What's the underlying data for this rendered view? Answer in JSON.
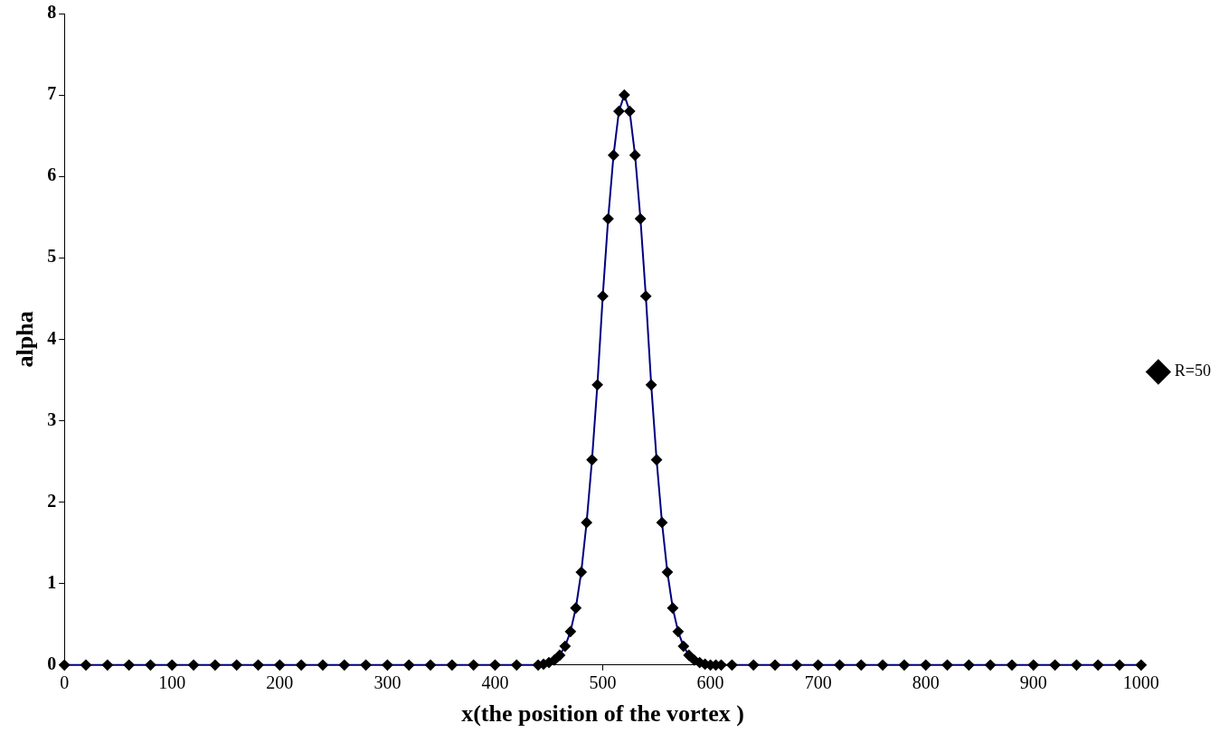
{
  "chart_data": {
    "type": "line",
    "xlabel": "x(the position of the vortex )",
    "ylabel": "alpha",
    "xlim": [
      0,
      1000
    ],
    "xticks": [
      0,
      100,
      200,
      300,
      400,
      500,
      600,
      700,
      800,
      900,
      1000
    ],
    "ylim": [
      0,
      8
    ],
    "yticks": [
      0,
      1,
      2,
      3,
      4,
      5,
      6,
      7,
      8
    ],
    "grid": false,
    "legend": "right",
    "marker": "diamond",
    "line_style": "solid",
    "series": [
      {
        "name": "R=50",
        "color": "#000080",
        "x": [
          0,
          20,
          40,
          60,
          80,
          100,
          120,
          140,
          160,
          180,
          200,
          220,
          240,
          260,
          280,
          300,
          320,
          340,
          360,
          380,
          400,
          420,
          440,
          445,
          450,
          455,
          460,
          465,
          470,
          475,
          480,
          485,
          490,
          495,
          500,
          505,
          510,
          515,
          520,
          525,
          530,
          535,
          540,
          545,
          550,
          555,
          560,
          565,
          570,
          575,
          580,
          585,
          590,
          595,
          600,
          605,
          610,
          620,
          640,
          660,
          680,
          700,
          720,
          740,
          760,
          780,
          800,
          820,
          840,
          860,
          880,
          900,
          920,
          940,
          960,
          980,
          1000
        ],
        "values": [
          0,
          0,
          0,
          0,
          0,
          0,
          0,
          0,
          0,
          0,
          0,
          0,
          0,
          0,
          0,
          0,
          0,
          0,
          0,
          0,
          0,
          0,
          0,
          0.01,
          0.03,
          0.06,
          0.12,
          0.23,
          0.41,
          0.7,
          1.14,
          1.75,
          2.52,
          3.44,
          4.53,
          5.48,
          6.26,
          6.8,
          7,
          6.8,
          6.26,
          5.48,
          4.53,
          3.44,
          2.52,
          1.75,
          1.14,
          0.7,
          0.41,
          0.23,
          0.12,
          0.06,
          0.03,
          0.01,
          0,
          0,
          0,
          0,
          0,
          0,
          0,
          0,
          0,
          0,
          0,
          0,
          0,
          0,
          0,
          0,
          0,
          0,
          0,
          0,
          0,
          0,
          0
        ]
      }
    ]
  }
}
